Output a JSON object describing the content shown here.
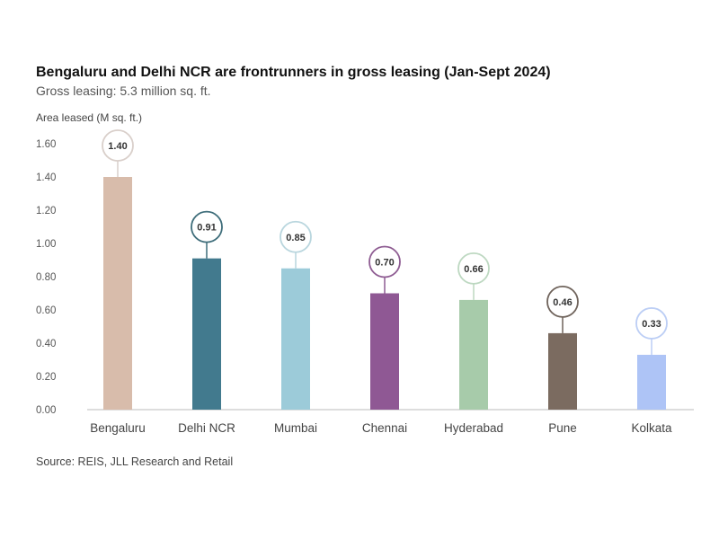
{
  "chart_data": {
    "type": "bar",
    "title": "Bengaluru and Delhi NCR are frontrunners in gross leasing (Jan-Sept 2024)",
    "subtitle": "Gross leasing: 5.3 million sq. ft.",
    "xlabel": "",
    "ylabel": "Area leased (M sq. ft.)",
    "ylim": [
      0,
      1.6
    ],
    "yticks": [
      "0.00",
      "0.20",
      "0.40",
      "0.60",
      "0.80",
      "1.00",
      "1.20",
      "1.40",
      "1.60"
    ],
    "grid": false,
    "categories": [
      "Bengaluru",
      "Delhi NCR",
      "Mumbai",
      "Chennai",
      "Hyderabad",
      "Pune",
      "Kolkata"
    ],
    "values": [
      1.4,
      0.91,
      0.85,
      0.7,
      0.66,
      0.46,
      0.33
    ],
    "data_labels": [
      "1.40",
      "0.91",
      "0.85",
      "0.70",
      "0.66",
      "0.46",
      "0.33"
    ],
    "colors": [
      "#d8bcab",
      "#427a8e",
      "#9ccbd9",
      "#8f5894",
      "#a7cbaa",
      "#7b6b60",
      "#aec4f6"
    ],
    "label_ring_colors": [
      "#d9cfca",
      "#3e6d7a",
      "#b9d6de",
      "#8e5c92",
      "#bdd8c1",
      "#6f635b",
      "#bccef5"
    ],
    "source": "Source: REIS, JLL Research and Retail"
  }
}
